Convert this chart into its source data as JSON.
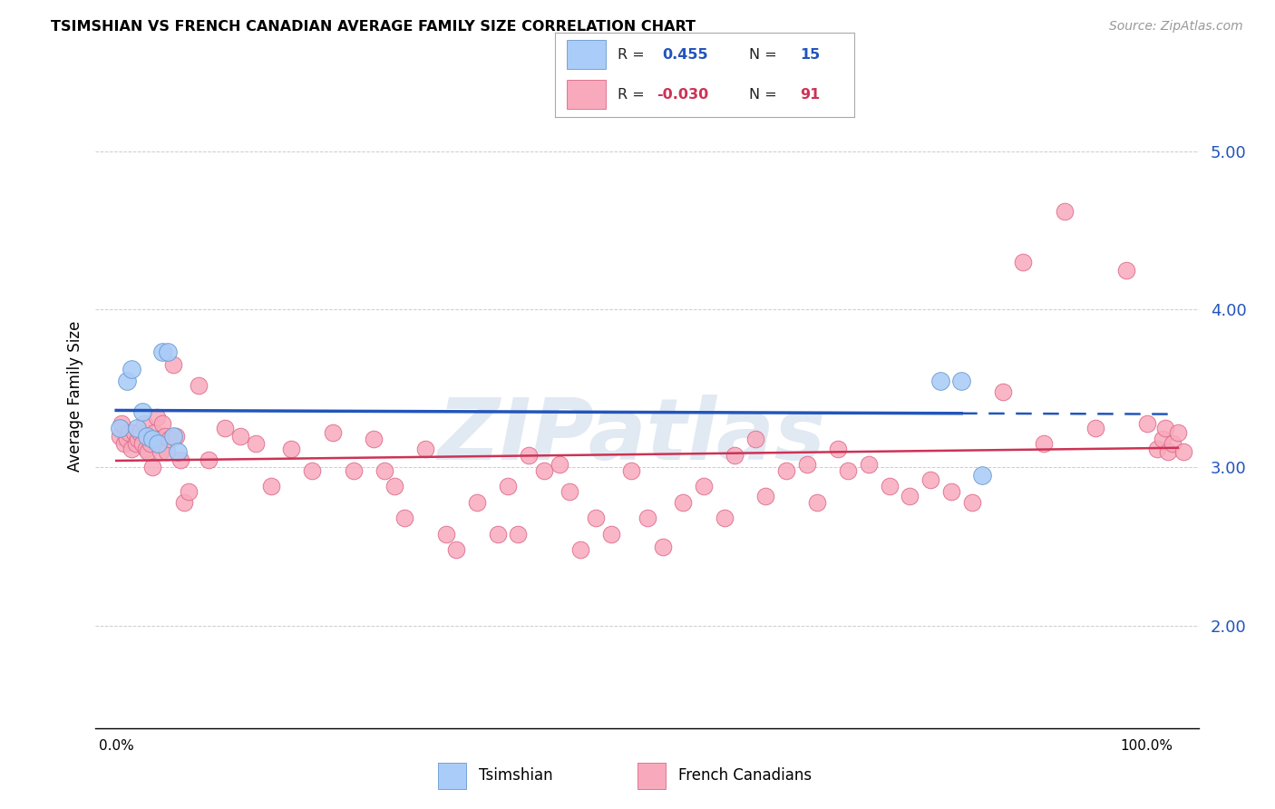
{
  "title": "TSIMSHIAN VS FRENCH CANADIAN AVERAGE FAMILY SIZE CORRELATION CHART",
  "source": "Source: ZipAtlas.com",
  "ylabel": "Average Family Size",
  "right_yticks": [
    2.0,
    3.0,
    4.0,
    5.0
  ],
  "tsimshian_color": "#aaccf8",
  "tsimshian_edge": "#6699cc",
  "french_color": "#f8aabc",
  "french_edge": "#dd6688",
  "blue_line_color": "#2255bb",
  "red_line_color": "#cc3355",
  "watermark": "ZIPatlas",
  "legend_r1": "0.455",
  "legend_n1": "15",
  "legend_r2": "-0.030",
  "legend_n2": "91",
  "tsimshian_x": [
    0.3,
    1.0,
    1.5,
    2.0,
    2.5,
    3.0,
    3.5,
    4.0,
    4.5,
    5.0,
    5.5,
    6.0,
    80.0,
    82.0,
    84.0
  ],
  "tsimshian_y": [
    3.25,
    3.55,
    3.62,
    3.25,
    3.35,
    3.2,
    3.18,
    3.15,
    3.73,
    3.73,
    3.2,
    3.1,
    3.55,
    3.55,
    2.95
  ],
  "french_x": [
    0.3,
    0.5,
    0.8,
    1.0,
    1.2,
    1.5,
    1.7,
    1.9,
    2.1,
    2.3,
    2.5,
    2.7,
    2.9,
    3.1,
    3.3,
    3.5,
    3.7,
    3.9,
    4.1,
    4.3,
    4.5,
    4.7,
    4.9,
    5.2,
    5.5,
    5.8,
    6.2,
    6.6,
    7.0,
    8.0,
    9.0,
    10.5,
    12.0,
    13.5,
    15.0,
    17.0,
    19.0,
    21.0,
    23.0,
    25.0,
    26.0,
    27.0,
    28.0,
    30.0,
    32.0,
    33.0,
    35.0,
    37.0,
    38.0,
    39.0,
    40.0,
    41.5,
    43.0,
    44.0,
    45.0,
    46.5,
    48.0,
    50.0,
    51.5,
    53.0,
    55.0,
    57.0,
    59.0,
    60.0,
    62.0,
    63.0,
    65.0,
    67.0,
    68.0,
    70.0,
    71.0,
    73.0,
    75.0,
    77.0,
    79.0,
    81.0,
    83.0,
    86.0,
    88.0,
    90.0,
    92.0,
    95.0,
    98.0,
    100.0,
    101.0,
    101.5,
    101.8,
    102.0,
    102.5,
    103.0,
    103.5
  ],
  "french_y": [
    3.2,
    3.28,
    3.15,
    3.18,
    3.22,
    3.12,
    3.22,
    3.15,
    3.18,
    3.22,
    3.15,
    3.28,
    3.12,
    3.1,
    3.15,
    3.0,
    3.22,
    3.32,
    3.18,
    3.1,
    3.28,
    3.2,
    3.1,
    3.18,
    3.65,
    3.2,
    3.05,
    2.78,
    2.85,
    3.52,
    3.05,
    3.25,
    3.2,
    3.15,
    2.88,
    3.12,
    2.98,
    3.22,
    2.98,
    3.18,
    2.98,
    2.88,
    2.68,
    3.12,
    2.58,
    2.48,
    2.78,
    2.58,
    2.88,
    2.58,
    3.08,
    2.98,
    3.02,
    2.85,
    2.48,
    2.68,
    2.58,
    2.98,
    2.68,
    2.5,
    2.78,
    2.88,
    2.68,
    3.08,
    3.18,
    2.82,
    2.98,
    3.02,
    2.78,
    3.12,
    2.98,
    3.02,
    2.88,
    2.82,
    2.92,
    2.85,
    2.78,
    3.48,
    4.3,
    3.15,
    4.62,
    3.25,
    4.25,
    3.28,
    3.12,
    3.18,
    3.25,
    3.1,
    3.15,
    3.22,
    3.1
  ]
}
